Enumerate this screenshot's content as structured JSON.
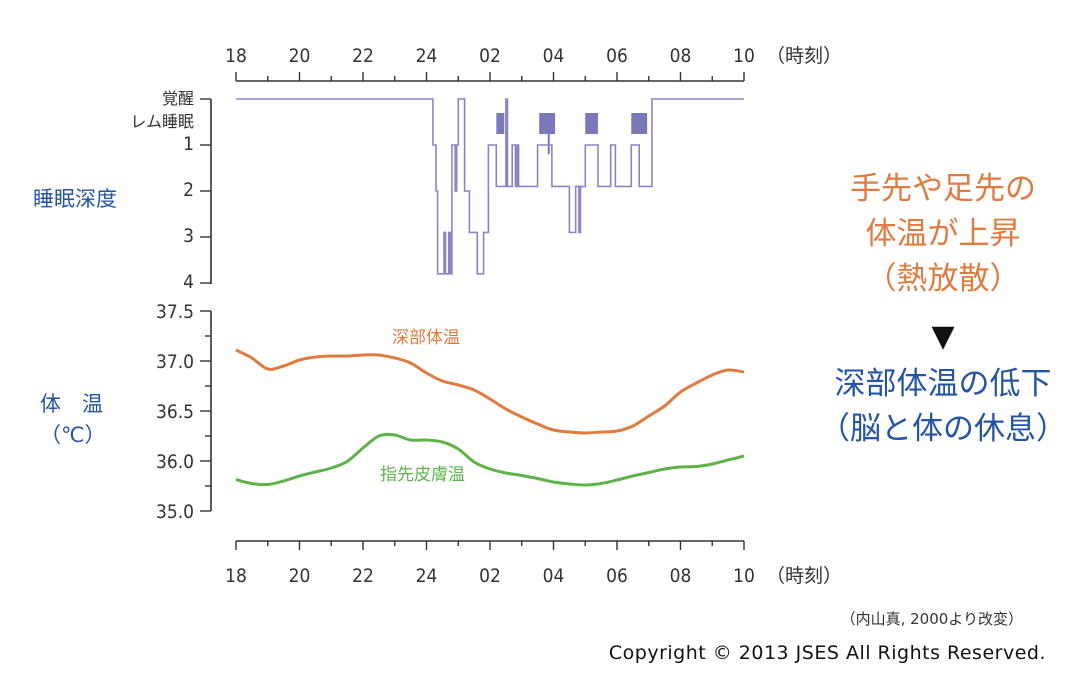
{
  "colors": {
    "sleep": "#8a86c4",
    "sleep_fill": "#7b77bb",
    "core_temp": "#e07a3f",
    "skin_temp": "#5db34a",
    "blue_text": "#2554a4",
    "orange_text": "#e07a3f"
  },
  "chart_data": [
    {
      "type": "line",
      "name": "sleep-hypnogram",
      "x_unit": "hours since 18:00",
      "x_tick_labels": [
        "18",
        "20",
        "22",
        "24",
        "02",
        "04",
        "06",
        "08",
        "10"
      ],
      "x_unit_label": "（時刻）",
      "ylabel": "睡眠深度",
      "y_tick_labels": [
        "覚醒",
        "レム睡眠",
        "1",
        "2",
        "3",
        "4"
      ],
      "y_range": [
        0,
        4
      ],
      "steps": [
        [
          0,
          0
        ],
        [
          6.2,
          0
        ],
        [
          6.2,
          1
        ],
        [
          6.3,
          1
        ],
        [
          6.3,
          2
        ],
        [
          6.35,
          2
        ],
        [
          6.35,
          3.8
        ],
        [
          6.55,
          3.8
        ],
        [
          6.55,
          2.9
        ],
        [
          6.6,
          2.9
        ],
        [
          6.6,
          3.8
        ],
        [
          6.7,
          3.8
        ],
        [
          6.7,
          2.9
        ],
        [
          6.75,
          2.9
        ],
        [
          6.75,
          3.8
        ],
        [
          6.8,
          3.8
        ],
        [
          6.8,
          1
        ],
        [
          6.9,
          1
        ],
        [
          6.9,
          2
        ],
        [
          6.95,
          2
        ],
        [
          6.95,
          1
        ],
        [
          7.0,
          1
        ],
        [
          7.0,
          0
        ],
        [
          7.2,
          0
        ],
        [
          7.2,
          2
        ],
        [
          7.35,
          2
        ],
        [
          7.35,
          2.9
        ],
        [
          7.55,
          2.9
        ],
        [
          7.55,
          2.9
        ],
        [
          7.6,
          2.9
        ],
        [
          7.6,
          3.8
        ],
        [
          7.8,
          3.8
        ],
        [
          7.8,
          2.9
        ],
        [
          7.95,
          2.9
        ],
        [
          7.95,
          1
        ],
        [
          8.2,
          1
        ],
        [
          8.2,
          1.9
        ],
        [
          8.5,
          1.9
        ],
        [
          8.5,
          0
        ],
        [
          8.55,
          0
        ],
        [
          8.55,
          1.9
        ],
        [
          8.7,
          1.9
        ],
        [
          8.7,
          1
        ],
        [
          8.8,
          1
        ],
        [
          8.8,
          1.9
        ],
        [
          8.85,
          1.9
        ],
        [
          8.85,
          1
        ],
        [
          8.9,
          1
        ],
        [
          8.9,
          1.9
        ],
        [
          9.5,
          1.9
        ],
        [
          9.5,
          1
        ],
        [
          9.95,
          1
        ],
        [
          9.95,
          1.9
        ],
        [
          10.5,
          1.9
        ],
        [
          10.5,
          2.9
        ],
        [
          10.7,
          2.9
        ],
        [
          10.7,
          1.9
        ],
        [
          10.8,
          1.9
        ],
        [
          10.8,
          2.9
        ],
        [
          10.85,
          2.9
        ],
        [
          10.85,
          1.9
        ],
        [
          11.0,
          1.9
        ],
        [
          11.0,
          1
        ],
        [
          11.4,
          1
        ],
        [
          11.4,
          1.9
        ],
        [
          11.8,
          1.9
        ],
        [
          11.8,
          1
        ],
        [
          11.95,
          1
        ],
        [
          11.95,
          1.9
        ],
        [
          12.45,
          1.9
        ],
        [
          12.45,
          1
        ],
        [
          12.7,
          1
        ],
        [
          12.7,
          1.9
        ],
        [
          13.1,
          1.9
        ],
        [
          13.1,
          0
        ],
        [
          16.0,
          0
        ]
      ],
      "rem_periods": [
        [
          8.2,
          8.45
        ],
        [
          9.55,
          10.05
        ],
        [
          11.0,
          11.4
        ],
        [
          12.45,
          12.95
        ]
      ],
      "rem_spikes": [
        [
          9.85,
          1.2
        ]
      ]
    },
    {
      "type": "line",
      "name": "body-temperature",
      "x_unit": "hours since 18:00",
      "x_tick_labels": [
        "18",
        "20",
        "22",
        "24",
        "02",
        "04",
        "06",
        "08",
        "10"
      ],
      "x_unit_label": "（時刻）",
      "ylabel_line1": "体　温",
      "ylabel_line2": "（℃）",
      "y_tick_labels": [
        "37.5",
        "37.0",
        "36.5",
        "36.0",
        "35.0"
      ],
      "series": [
        {
          "name": "深部体温",
          "x": [
            0,
            0.5,
            1.0,
            1.5,
            2.0,
            2.5,
            3.0,
            3.5,
            4.0,
            4.5,
            5.0,
            5.5,
            6.0,
            6.5,
            7.0,
            7.5,
            8.0,
            8.5,
            9.0,
            9.5,
            10.0,
            10.5,
            11.0,
            11.5,
            12.0,
            12.5,
            13.0,
            13.5,
            14.0,
            14.5,
            15.0,
            15.5,
            16.0
          ],
          "y": [
            37.11,
            37.03,
            36.92,
            36.95,
            37.01,
            37.04,
            37.05,
            37.05,
            37.06,
            37.06,
            37.03,
            36.98,
            36.88,
            36.8,
            36.76,
            36.71,
            36.62,
            36.52,
            36.44,
            36.37,
            36.31,
            36.29,
            36.28,
            36.29,
            36.3,
            36.35,
            36.45,
            36.55,
            36.69,
            36.78,
            36.86,
            36.91,
            36.89
          ]
        },
        {
          "name": "指先皮膚温",
          "x": [
            0,
            0.5,
            1.0,
            1.5,
            2.0,
            2.5,
            3.0,
            3.5,
            4.0,
            4.5,
            5.0,
            5.5,
            6.0,
            6.5,
            7.0,
            7.5,
            8.0,
            8.5,
            9.0,
            9.5,
            10.0,
            10.5,
            11.0,
            11.5,
            12.0,
            12.5,
            13.0,
            13.5,
            14.0,
            14.5,
            15.0,
            15.5,
            16.0
          ],
          "y": [
            35.63,
            35.55,
            35.53,
            35.6,
            35.7,
            35.78,
            35.86,
            35.99,
            36.13,
            36.25,
            36.26,
            36.21,
            36.21,
            36.19,
            36.12,
            35.98,
            35.84,
            35.76,
            35.71,
            35.65,
            35.58,
            35.54,
            35.52,
            35.55,
            35.62,
            35.7,
            35.77,
            35.84,
            35.88,
            35.89,
            35.94,
            36.01,
            36.05
          ]
        }
      ]
    }
  ],
  "labels": {
    "core_temp": "深部体温",
    "skin_temp": "指先皮膚温"
  },
  "callout": {
    "line1": "手先や足先の",
    "line2": "体温が上昇",
    "line3": "（熱放散）",
    "arrow": "▼",
    "line4": "深部体温の低下",
    "line5": "（脳と体の休息）"
  },
  "source_note": "（内山真, 2000より改変）",
  "copyright": "Copyright © 2013 JSES All Rights Reserved."
}
